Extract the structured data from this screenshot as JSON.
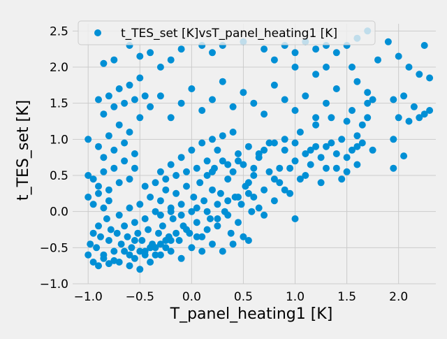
{
  "chart_data": {
    "type": "scatter",
    "title": "",
    "xlabel": "T_panel_heating1 [K]",
    "ylabel": "t_TES_set [K]",
    "xlim": [
      -1.15,
      2.36
    ],
    "ylim": [
      -1.0,
      2.6
    ],
    "xticks": [
      -1.0,
      -0.5,
      0.0,
      0.5,
      1.0,
      1.5,
      2.0
    ],
    "xtick_labels": [
      "−1.0",
      "−0.5",
      "0.0",
      "0.5",
      "1.0",
      "1.5",
      "2.0"
    ],
    "yticks": [
      -1.0,
      -0.5,
      0.0,
      0.5,
      1.0,
      1.5,
      2.0,
      2.5
    ],
    "ytick_labels": [
      "−1.0",
      "−0.5",
      "0.0",
      "0.5",
      "1.0",
      "1.5",
      "2.0",
      "2.5"
    ],
    "grid": true,
    "legend_position": "top-center",
    "legend": [
      "t_TES_set [K]vsT_panel_heating1 [K]"
    ],
    "series": [
      {
        "name": "t_TES_set [K]vsT_panel_heating1 [K]",
        "color": "#008fd5",
        "points": [
          [
            -1.0,
            -0.6
          ],
          [
            -0.98,
            -0.45
          ],
          [
            -0.95,
            -0.3
          ],
          [
            -0.92,
            -0.5
          ],
          [
            -0.9,
            -0.2
          ],
          [
            -0.88,
            -0.35
          ],
          [
            -0.85,
            -0.6
          ],
          [
            -0.82,
            -0.1
          ],
          [
            -0.8,
            -0.4
          ],
          [
            -0.78,
            -0.25
          ],
          [
            -0.75,
            -0.55
          ],
          [
            -0.72,
            -0.3
          ],
          [
            -0.7,
            -0.05
          ],
          [
            -0.68,
            -0.45
          ],
          [
            -0.65,
            -0.2
          ],
          [
            -0.62,
            -0.35
          ],
          [
            -0.6,
            0.05
          ],
          [
            -0.58,
            -0.5
          ],
          [
            -0.55,
            -0.15
          ],
          [
            -0.52,
            -0.3
          ],
          [
            -0.5,
            0.1
          ],
          [
            -0.48,
            -0.4
          ],
          [
            -0.45,
            -0.1
          ],
          [
            -0.42,
            -0.25
          ],
          [
            -0.4,
            0.2
          ],
          [
            -0.38,
            -0.45
          ],
          [
            -0.35,
            0.0
          ],
          [
            -0.32,
            -0.3
          ],
          [
            -0.3,
            0.15
          ],
          [
            -0.28,
            -0.2
          ],
          [
            -0.25,
            0.3
          ],
          [
            -0.22,
            -0.35
          ],
          [
            -0.2,
            0.05
          ],
          [
            -0.18,
            -0.1
          ],
          [
            -0.15,
            0.25
          ],
          [
            -0.12,
            -0.4
          ],
          [
            -0.1,
            0.1
          ],
          [
            -0.08,
            -0.2
          ],
          [
            -0.05,
            0.35
          ],
          [
            -0.02,
            -0.3
          ],
          [
            0.0,
            0.0
          ],
          [
            0.02,
            0.2
          ],
          [
            0.05,
            -0.15
          ],
          [
            0.08,
            0.4
          ],
          [
            0.1,
            -0.35
          ],
          [
            0.12,
            0.15
          ],
          [
            0.15,
            0.5
          ],
          [
            0.18,
            -0.1
          ],
          [
            0.2,
            0.3
          ],
          [
            0.22,
            0.6
          ],
          [
            0.25,
            -0.2
          ],
          [
            0.28,
            0.25
          ],
          [
            0.3,
            0.7
          ],
          [
            0.32,
            0.0
          ],
          [
            0.35,
            0.45
          ],
          [
            0.38,
            -0.3
          ],
          [
            0.4,
            0.55
          ],
          [
            0.42,
            0.2
          ],
          [
            0.45,
            0.8
          ],
          [
            0.48,
            0.1
          ],
          [
            0.5,
            0.65
          ],
          [
            0.52,
            0.35
          ],
          [
            0.55,
            0.9
          ],
          [
            0.58,
            0.0
          ],
          [
            0.6,
            0.5
          ],
          [
            0.65,
            0.75
          ],
          [
            0.7,
            0.3
          ],
          [
            0.75,
            0.95
          ],
          [
            0.8,
            0.45
          ],
          [
            0.85,
            0.6
          ],
          [
            0.9,
            1.0
          ],
          [
            0.95,
            0.25
          ],
          [
            1.0,
            0.7
          ],
          [
            1.05,
            1.1
          ],
          [
            1.1,
            0.5
          ],
          [
            1.15,
            0.85
          ],
          [
            1.2,
            1.2
          ],
          [
            1.25,
            0.4
          ],
          [
            1.3,
            0.9
          ],
          [
            1.35,
            1.3
          ],
          [
            1.4,
            0.6
          ],
          [
            1.45,
            1.0
          ],
          [
            1.5,
            0.75
          ],
          [
            1.55,
            1.4
          ],
          [
            1.6,
            0.9
          ],
          [
            1.65,
            1.2
          ],
          [
            1.7,
            1.5
          ],
          [
            1.75,
            0.85
          ],
          [
            1.95,
            0.6
          ],
          [
            2.05,
            0.77
          ],
          [
            -0.7,
            -0.7
          ],
          [
            -0.6,
            -0.75
          ],
          [
            -0.5,
            -0.8
          ],
          [
            -0.4,
            -0.7
          ],
          [
            -0.3,
            -0.6
          ],
          [
            -0.2,
            -0.55
          ],
          [
            -0.1,
            -0.65
          ],
          [
            0.0,
            -0.5
          ],
          [
            0.1,
            -0.55
          ],
          [
            0.2,
            -0.45
          ],
          [
            -0.95,
            -0.7
          ],
          [
            -0.9,
            -0.75
          ],
          [
            -0.85,
            -0.65
          ],
          [
            -0.8,
            -0.72
          ],
          [
            -0.75,
            -0.68
          ],
          [
            -1.0,
            0.5
          ],
          [
            -0.95,
            0.45
          ],
          [
            -0.9,
            0.35
          ],
          [
            -0.85,
            0.55
          ],
          [
            -0.8,
            0.3
          ],
          [
            -0.75,
            0.6
          ],
          [
            -0.7,
            0.4
          ],
          [
            -0.65,
            0.7
          ],
          [
            -0.6,
            0.45
          ],
          [
            -0.55,
            0.6
          ],
          [
            -1.0,
            0.2
          ],
          [
            -0.95,
            0.1
          ],
          [
            -0.9,
            0.25
          ],
          [
            -0.85,
            0.05
          ],
          [
            -0.8,
            0.15
          ],
          [
            -1.0,
            1.0
          ],
          [
            -0.9,
            0.9
          ],
          [
            -0.85,
            0.75
          ],
          [
            -0.8,
            1.05
          ],
          [
            -0.75,
            0.85
          ],
          [
            -0.7,
            1.2
          ],
          [
            -0.65,
            0.95
          ],
          [
            -0.6,
            1.1
          ],
          [
            -0.55,
            0.8
          ],
          [
            -0.5,
            1.3
          ],
          [
            -0.9,
            1.55
          ],
          [
            -0.85,
            1.35
          ],
          [
            -0.8,
            1.6
          ],
          [
            -0.75,
            1.45
          ],
          [
            -0.7,
            1.7
          ],
          [
            -0.65,
            1.5
          ],
          [
            -0.6,
            1.75
          ],
          [
            -0.55,
            1.55
          ],
          [
            -0.5,
            1.85
          ],
          [
            -0.45,
            1.6
          ],
          [
            -0.85,
            2.05
          ],
          [
            -0.75,
            2.1
          ],
          [
            -0.6,
            2.3
          ],
          [
            -0.5,
            2.15
          ],
          [
            -0.4,
            2.2
          ],
          [
            -0.3,
            2.0
          ],
          [
            -0.2,
            2.1
          ],
          [
            -0.1,
            2.25
          ],
          [
            0.1,
            2.3
          ],
          [
            0.2,
            2.2
          ],
          [
            -0.4,
            1.45
          ],
          [
            -0.3,
            1.6
          ],
          [
            -0.2,
            1.3
          ],
          [
            -0.1,
            1.5
          ],
          [
            0.0,
            1.7
          ],
          [
            0.1,
            1.4
          ],
          [
            0.2,
            1.55
          ],
          [
            0.3,
            1.8
          ],
          [
            0.4,
            1.45
          ],
          [
            0.5,
            1.65
          ],
          [
            0.6,
            1.5
          ],
          [
            0.7,
            1.35
          ],
          [
            0.8,
            1.75
          ],
          [
            0.9,
            1.55
          ],
          [
            1.0,
            1.4
          ],
          [
            1.1,
            1.6
          ],
          [
            1.2,
            1.3
          ],
          [
            1.3,
            1.5
          ],
          [
            1.4,
            1.7
          ],
          [
            1.5,
            1.25
          ],
          [
            0.3,
            2.3
          ],
          [
            0.5,
            2.35
          ],
          [
            0.7,
            2.25
          ],
          [
            0.8,
            2.1
          ],
          [
            0.9,
            2.3
          ],
          [
            1.0,
            2.2
          ],
          [
            1.1,
            2.35
          ],
          [
            1.2,
            2.25
          ],
          [
            1.3,
            2.3
          ],
          [
            1.4,
            2.2
          ],
          [
            1.5,
            2.3
          ],
          [
            1.6,
            2.4
          ],
          [
            1.55,
            2.0
          ],
          [
            1.7,
            2.5
          ],
          [
            1.8,
            2.1
          ],
          [
            1.2,
            1.9
          ],
          [
            1.3,
            2.0
          ],
          [
            1.0,
            2.0
          ],
          [
            1.6,
            1.8
          ],
          [
            1.7,
            1.65
          ],
          [
            1.9,
            2.35
          ],
          [
            2.0,
            2.15
          ],
          [
            2.1,
            2.0
          ],
          [
            2.2,
            1.9
          ],
          [
            2.3,
            1.85
          ],
          [
            1.95,
            1.55
          ],
          [
            2.05,
            1.6
          ],
          [
            2.15,
            1.45
          ],
          [
            2.25,
            1.35
          ],
          [
            2.3,
            1.4
          ],
          [
            2.0,
            1.3
          ],
          [
            2.1,
            1.25
          ],
          [
            2.2,
            1.3
          ],
          [
            2.25,
            2.3
          ],
          [
            1.95,
            1.0
          ],
          [
            -0.3,
            0.55
          ],
          [
            -0.2,
            0.65
          ],
          [
            -0.1,
            0.75
          ],
          [
            0.0,
            0.85
          ],
          [
            0.1,
            0.95
          ],
          [
            0.2,
            1.0
          ],
          [
            0.3,
            1.05
          ],
          [
            0.4,
            1.1
          ],
          [
            0.15,
            0.7
          ],
          [
            0.25,
            0.85
          ],
          [
            -0.3,
            -0.05
          ],
          [
            -0.2,
            0.0
          ],
          [
            -0.1,
            -0.05
          ],
          [
            0.05,
            0.05
          ],
          [
            0.15,
            0.0
          ],
          [
            0.25,
            0.1
          ],
          [
            0.35,
            0.15
          ],
          [
            0.45,
            0.2
          ],
          [
            0.55,
            0.25
          ],
          [
            0.6,
            0.2
          ],
          [
            -0.45,
            0.35
          ],
          [
            -0.35,
            0.4
          ],
          [
            -0.25,
            0.45
          ],
          [
            -0.15,
            0.5
          ],
          [
            -0.05,
            0.55
          ],
          [
            0.05,
            0.6
          ],
          [
            0.2,
            0.55
          ],
          [
            0.35,
            0.65
          ],
          [
            0.45,
            0.7
          ],
          [
            0.7,
            0.85
          ],
          [
            0.8,
            0.95
          ],
          [
            0.9,
            0.85
          ],
          [
            1.0,
            0.95
          ],
          [
            1.1,
            0.8
          ],
          [
            1.2,
            0.9
          ],
          [
            1.3,
            0.6
          ],
          [
            1.4,
            0.8
          ],
          [
            1.5,
            0.55
          ],
          [
            1.6,
            0.65
          ],
          [
            1.65,
            0.95
          ],
          [
            1.0,
            -0.1
          ],
          [
            0.9,
            0.3
          ],
          [
            0.8,
            0.15
          ],
          [
            0.7,
            -0.05
          ],
          [
            0.65,
            0.05
          ],
          [
            -0.55,
            -0.4
          ],
          [
            -0.45,
            -0.55
          ],
          [
            -0.35,
            -0.5
          ],
          [
            -0.25,
            -0.4
          ],
          [
            -0.15,
            -0.3
          ],
          [
            -0.05,
            -0.25
          ],
          [
            0.05,
            -0.35
          ],
          [
            0.15,
            -0.25
          ],
          [
            0.25,
            -0.1
          ],
          [
            0.35,
            -0.05
          ],
          [
            -0.65,
            -0.55
          ],
          [
            -0.6,
            -0.6
          ],
          [
            -0.55,
            -0.65
          ],
          [
            -0.5,
            -0.55
          ],
          [
            -0.45,
            -0.6
          ],
          [
            -0.4,
            -0.5
          ],
          [
            -0.35,
            -0.6
          ],
          [
            -0.3,
            -0.45
          ],
          [
            -0.25,
            -0.5
          ],
          [
            -0.2,
            -0.4
          ],
          [
            0.3,
            -0.55
          ],
          [
            0.4,
            -0.45
          ],
          [
            0.5,
            -0.35
          ],
          [
            0.55,
            -0.4
          ],
          [
            0.45,
            -0.15
          ],
          [
            0.55,
            0.4
          ],
          [
            0.6,
            0.6
          ],
          [
            0.65,
            0.8
          ],
          [
            0.75,
            0.55
          ],
          [
            0.85,
            0.4
          ],
          [
            0.95,
            0.6
          ],
          [
            1.05,
            0.45
          ],
          [
            1.15,
            0.65
          ],
          [
            1.25,
            0.75
          ],
          [
            1.35,
            0.95
          ],
          [
            1.45,
            0.45
          ],
          [
            1.55,
            0.85
          ],
          [
            1.6,
            1.05
          ],
          [
            1.7,
            1.3
          ],
          [
            1.75,
            1.55
          ]
        ]
      }
    ]
  }
}
